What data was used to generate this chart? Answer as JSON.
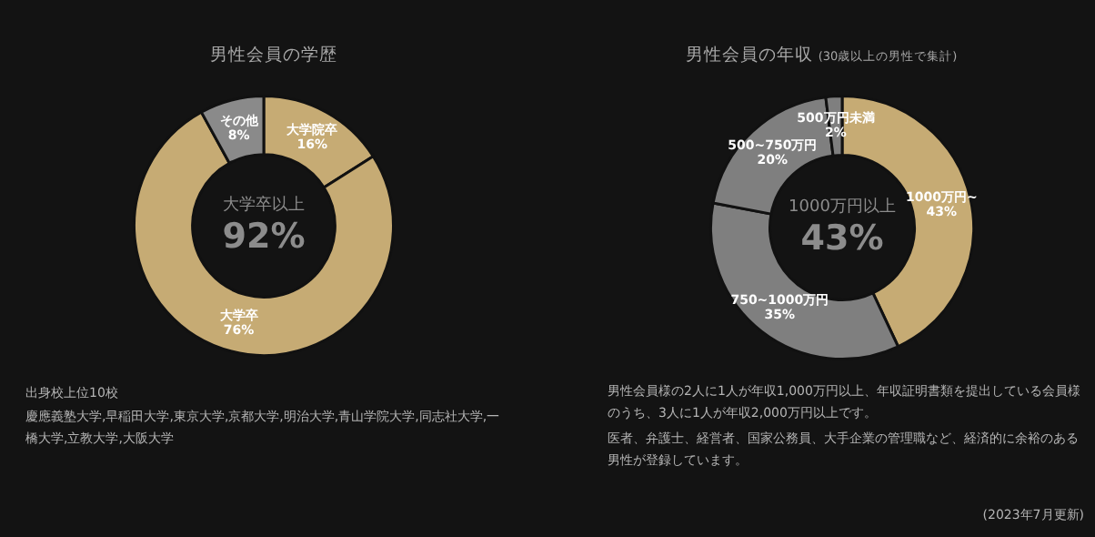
{
  "chart_data": [
    {
      "type": "donut",
      "title": "男性会員の学歴",
      "categories": [
        "大学院卒",
        "大学卒",
        "その他"
      ],
      "values": [
        16,
        76,
        8
      ],
      "value_labels": [
        "16%",
        "76%",
        "8%"
      ],
      "colors": [
        "#c6ab74",
        "#c6ab74",
        "#8a8a8a"
      ],
      "legend": false,
      "annotations": [
        "大学卒以上",
        "92%",
        "出身校上位10校",
        "慶應義塾大学,早稲田大学,東京大学,京都大学,明治大学,青山学院大学,同志社大学,一橋大学,立教大学,大阪大学"
      ]
    },
    {
      "type": "donut",
      "title": "男性会員の年収",
      "subtitle": "(30歳以上の男性で集計)",
      "categories": [
        "1000万円~",
        "750~1000万円",
        "500~750万円",
        "500万円未満"
      ],
      "values": [
        43,
        35,
        20,
        2
      ],
      "value_labels": [
        "43%",
        "35%",
        "20%",
        "2%"
      ],
      "colors": [
        "#c6ab74",
        "#7f7f7f",
        "#7f7f7f",
        "#7f7f7f"
      ],
      "legend": false,
      "annotations": [
        "1000万円以上",
        "43%",
        "男性会員様の2人に1人が年収1,000万円以上、年収証明書類を提出している会員様のうち、3人に1人が年収2,000万円以上です。",
        "医者、弁護士、経営者、国家公務員、大手企業の管理職など、経済的に余裕のある男性が登録しています。",
        "(2023年7月更新)"
      ]
    }
  ]
}
